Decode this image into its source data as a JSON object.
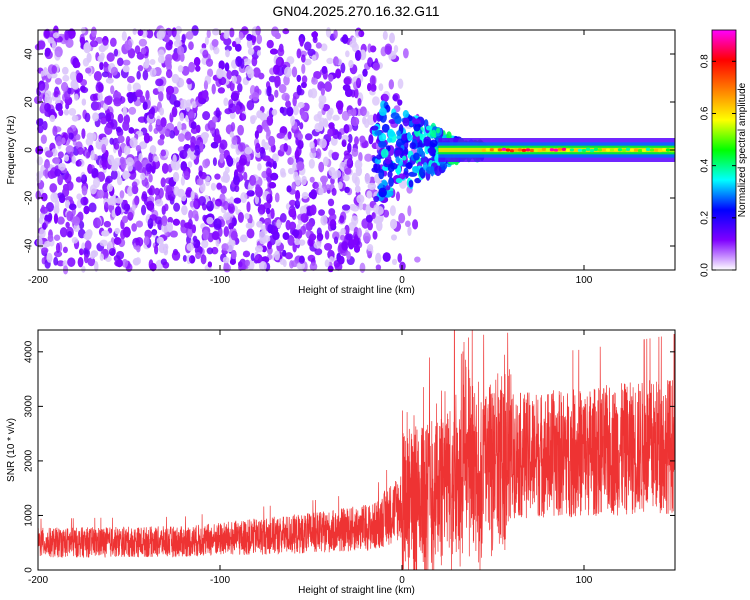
{
  "title": "GN04.2025.270.16.32.G11",
  "chart_data": [
    {
      "type": "heatmap",
      "xlabel": "Height of straight line (km)",
      "ylabel": "Frequency (Hz)",
      "xlim": [
        -200,
        150
      ],
      "ylim": [
        -50,
        50
      ],
      "xticks": [
        -200,
        -100,
        0,
        100
      ],
      "yticks": [
        -40,
        -20,
        0,
        20,
        40
      ],
      "colorbar": {
        "label": "Normalized spectral amplitude",
        "range": [
          0,
          0.92
        ],
        "ticks": [
          0.0,
          0.2,
          0.4,
          0.6,
          0.8
        ],
        "colors": [
          "#ffffff",
          "#7f00ff",
          "#0000ff",
          "#00ffff",
          "#00ff00",
          "#ffff00",
          "#ff7f00",
          "#ff0000",
          "#ff00ff"
        ]
      },
      "features": {
        "noise_region_x": [
          -200,
          0
        ],
        "noise_amplitude": 0.1,
        "tone_x": [
          20,
          150
        ],
        "tone_frequency_hz": 0,
        "tone_peak_amplitude": 0.85
      }
    },
    {
      "type": "line",
      "xlabel": "Height of straight line (km)",
      "ylabel": "SNR (10 * v/v)",
      "xlim": [
        -200,
        150
      ],
      "ylim": [
        0,
        4400
      ],
      "xticks": [
        -200,
        -100,
        0,
        100
      ],
      "yticks": [
        0,
        1000,
        2000,
        3000,
        4000
      ],
      "color": "#ee3333",
      "profile_km": [
        -200,
        -120,
        -40,
        -15,
        0,
        30,
        60,
        100,
        150
      ],
      "profile_snr": [
        500,
        520,
        700,
        800,
        1200,
        1700,
        2100,
        2150,
        2300
      ]
    }
  ]
}
